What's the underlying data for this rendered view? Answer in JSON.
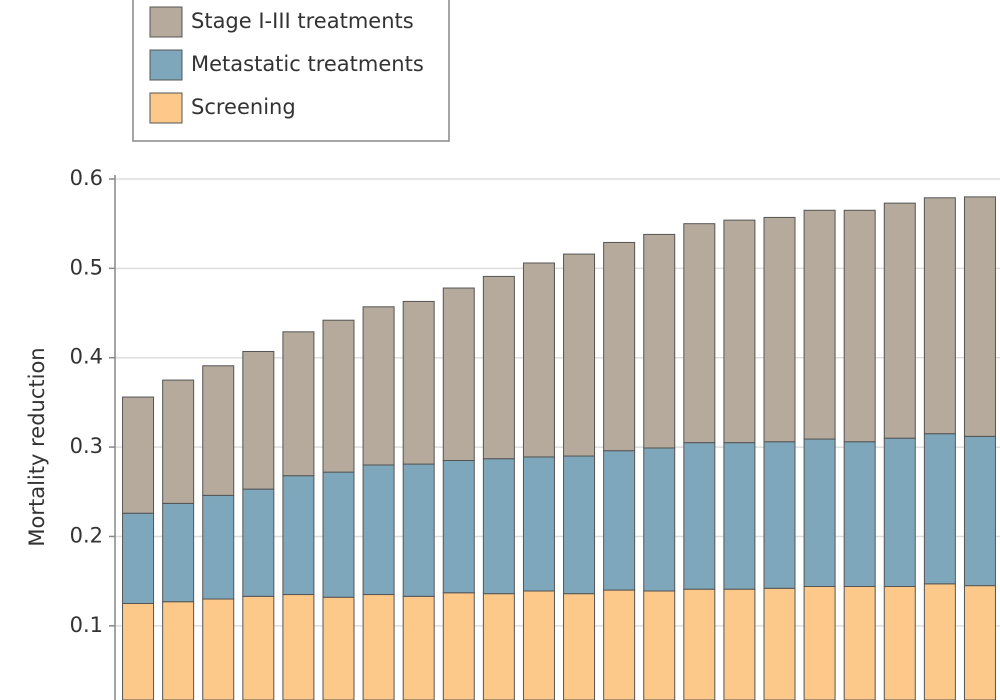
{
  "chart_data": {
    "type": "stacked_bar",
    "y_label": "Mortality reduction",
    "ylim": [
      0.017,
      0.6
    ],
    "yticks": [
      0.1,
      0.2,
      0.3,
      0.4,
      0.5,
      0.6
    ],
    "grid": true,
    "legend": "top-left",
    "series": [
      {
        "name": "Stage I-III treatments",
        "color": "#b5aa9c",
        "values": [
          0.13,
          0.138,
          0.145,
          0.154,
          0.161,
          0.17,
          0.177,
          0.182,
          0.193,
          0.204,
          0.217,
          0.226,
          0.233,
          0.239,
          0.245,
          0.249,
          0.251,
          0.256,
          0.259,
          0.263,
          0.264,
          0.268
        ]
      },
      {
        "name": "Metastatic treatments",
        "color": "#7fa7bc",
        "values": [
          0.101,
          0.11,
          0.116,
          0.12,
          0.133,
          0.14,
          0.145,
          0.148,
          0.148,
          0.151,
          0.15,
          0.154,
          0.156,
          0.16,
          0.164,
          0.164,
          0.164,
          0.165,
          0.162,
          0.166,
          0.168,
          0.167
        ]
      },
      {
        "name": "Screening",
        "color": "#fcc98a",
        "values": [
          0.125,
          0.127,
          0.13,
          0.133,
          0.135,
          0.132,
          0.135,
          0.133,
          0.137,
          0.136,
          0.139,
          0.136,
          0.14,
          0.139,
          0.141,
          0.141,
          0.142,
          0.144,
          0.144,
          0.144,
          0.147,
          0.145
        ]
      }
    ]
  }
}
